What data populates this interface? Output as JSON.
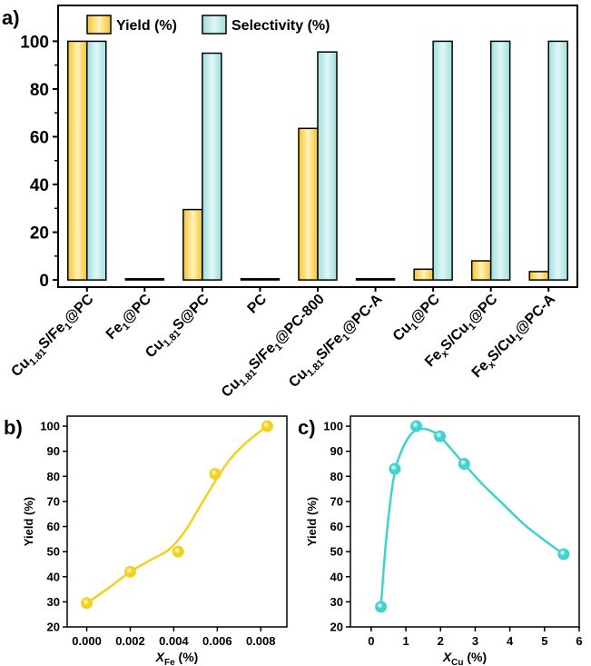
{
  "panel_labels": {
    "a": "a)",
    "b": "b)",
    "c": "c)"
  },
  "colors": {
    "yield_fill": "#FFF3B8",
    "yield_fill_dark": "#F4C232",
    "selectivity_fill": "#E0F7F7",
    "selectivity_fill_dark": "#9FDEDC",
    "curve_b": "#F2D21C",
    "curve_c": "#3FD3CC"
  },
  "chart_data": [
    {
      "id": "a",
      "type": "bar",
      "categories": [
        {
          "parts": [
            [
              "Cu",
              ""
            ],
            [
              "1.81",
              "sub"
            ],
            [
              "S/Fe",
              ""
            ],
            [
              "1",
              "sub"
            ],
            [
              "@PC",
              ""
            ]
          ]
        },
        {
          "parts": [
            [
              "Fe",
              ""
            ],
            [
              "1",
              "sub"
            ],
            [
              "@PC",
              ""
            ]
          ]
        },
        {
          "parts": [
            [
              "Cu",
              ""
            ],
            [
              "1.81",
              "sub"
            ],
            [
              "S@PC",
              ""
            ]
          ]
        },
        {
          "parts": [
            [
              "PC",
              ""
            ]
          ]
        },
        {
          "parts": [
            [
              "Cu",
              ""
            ],
            [
              "1.81",
              "sub"
            ],
            [
              "S/Fe",
              ""
            ],
            [
              "1",
              "sub"
            ],
            [
              "@PC-800",
              ""
            ]
          ]
        },
        {
          "parts": [
            [
              "Cu",
              ""
            ],
            [
              "1.81",
              "sub"
            ],
            [
              "S/Fe",
              ""
            ],
            [
              "1",
              "sub"
            ],
            [
              "@PC-A",
              ""
            ]
          ]
        },
        {
          "parts": [
            [
              "Cu",
              ""
            ],
            [
              "1",
              "sub"
            ],
            [
              "@PC",
              ""
            ]
          ]
        },
        {
          "parts": [
            [
              "Fe",
              ""
            ],
            [
              "x",
              "sub"
            ],
            [
              "S/Cu",
              ""
            ],
            [
              "1",
              "sub"
            ],
            [
              "@PC",
              ""
            ]
          ]
        },
        {
          "parts": [
            [
              "Fe",
              ""
            ],
            [
              "x",
              "sub"
            ],
            [
              "S/Cu",
              ""
            ],
            [
              "1",
              "sub"
            ],
            [
              "@PC-A",
              ""
            ]
          ]
        }
      ],
      "series": [
        {
          "name": "Yield (%)",
          "values": [
            100,
            0.5,
            29.5,
            0.5,
            63.5,
            0.5,
            4.5,
            8,
            3.5
          ]
        },
        {
          "name": "Selectivity (%)",
          "values": [
            100,
            0.5,
            95,
            0.5,
            95.5,
            0.5,
            100,
            100,
            100
          ]
        }
      ],
      "ylim": [
        -3,
        115
      ],
      "yticks": [
        0,
        20,
        40,
        60,
        80,
        100
      ],
      "legend": "top-left"
    },
    {
      "id": "b",
      "type": "scatter",
      "x": [
        0.0,
        0.002,
        0.0042,
        0.0059,
        0.0083
      ],
      "y": [
        29.5,
        42,
        50,
        81,
        100
      ],
      "xlim": [
        -0.0009,
        0.0092
      ],
      "ylim": [
        20,
        104
      ],
      "xticks": [
        "0.000",
        "0.002",
        "0.004",
        "0.006",
        "0.008"
      ],
      "yticks": [
        20,
        30,
        40,
        50,
        60,
        70,
        80,
        90,
        100
      ],
      "xlabel": {
        "main": "X",
        "sub": "Fe",
        "unit": " (%)"
      },
      "ylabel": "Yield (%)",
      "curve": [
        [
          0.0,
          29.5
        ],
        [
          0.001,
          35.5
        ],
        [
          0.002,
          42
        ],
        [
          0.003,
          47
        ],
        [
          0.0038,
          51
        ],
        [
          0.0045,
          58
        ],
        [
          0.0052,
          68
        ],
        [
          0.0059,
          78
        ],
        [
          0.0066,
          87
        ],
        [
          0.0074,
          94
        ],
        [
          0.0083,
          100
        ]
      ]
    },
    {
      "id": "c",
      "type": "scatter",
      "x": [
        0.28,
        0.68,
        1.3,
        1.98,
        2.68,
        5.55
      ],
      "y": [
        28,
        83,
        100,
        96,
        85,
        49
      ],
      "xlim": [
        -0.6,
        6.0
      ],
      "ylim": [
        20,
        104
      ],
      "xticks": [
        "0",
        "1",
        "2",
        "3",
        "4",
        "5",
        "6"
      ],
      "yticks": [
        20,
        30,
        40,
        50,
        60,
        70,
        80,
        90,
        100
      ],
      "xlabel": {
        "main": "X",
        "sub": "Cu",
        "unit": " (%)"
      },
      "ylabel": "Yield (%)",
      "curve": [
        [
          0.28,
          28
        ],
        [
          0.4,
          50
        ],
        [
          0.55,
          70
        ],
        [
          0.7,
          83
        ],
        [
          0.9,
          91
        ],
        [
          1.1,
          96
        ],
        [
          1.3,
          98.5
        ],
        [
          1.5,
          99
        ],
        [
          1.75,
          98
        ],
        [
          1.98,
          96
        ],
        [
          2.3,
          91
        ],
        [
          2.68,
          85
        ],
        [
          3.2,
          77
        ],
        [
          3.8,
          69
        ],
        [
          4.4,
          61
        ],
        [
          5.0,
          54.5
        ],
        [
          5.55,
          49
        ]
      ]
    }
  ]
}
